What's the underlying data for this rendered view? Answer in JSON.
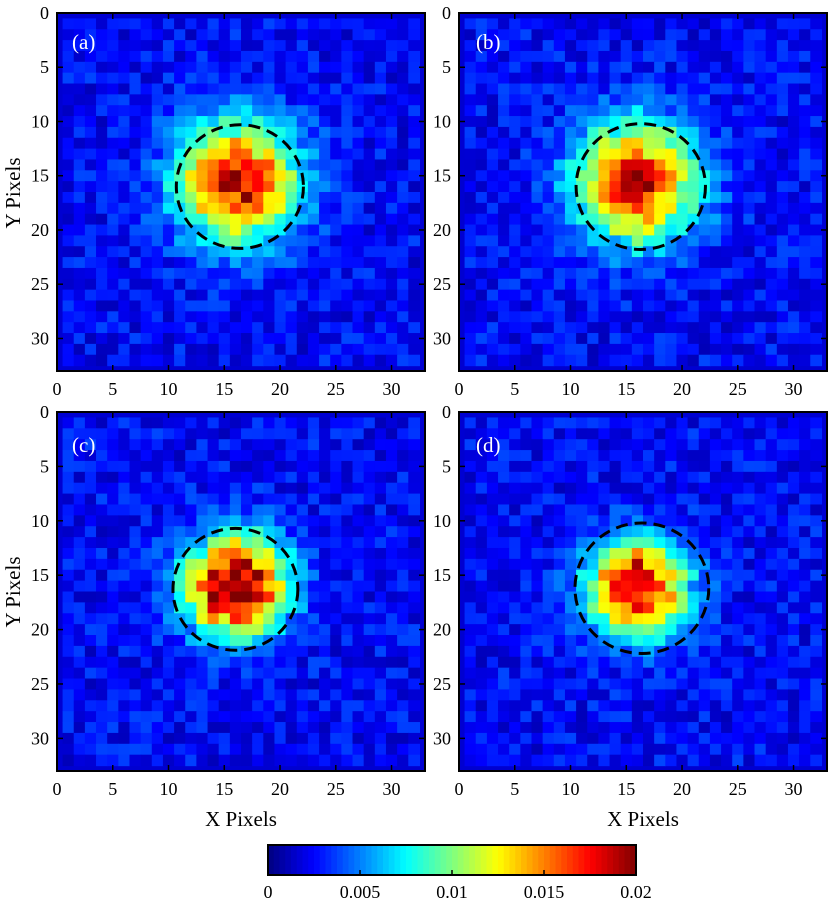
{
  "chart_data": [
    {
      "type": "heatmap",
      "panel_label": "(a)",
      "x_ticks": [
        0,
        5,
        10,
        15,
        20,
        25,
        30
      ],
      "y_ticks": [
        0,
        5,
        10,
        15,
        20,
        25,
        30
      ],
      "xlim": [
        0,
        33
      ],
      "ylim": [
        0,
        33
      ],
      "xlabel": "",
      "ylabel": "Y  Pixels",
      "grid_size": 32,
      "background_level": 0.0025,
      "spot": {
        "center_x": 16.2,
        "center_y": 15.5,
        "peak": 0.0165,
        "sigma": 3.7
      },
      "circle": {
        "center_x": 16.4,
        "center_y": 16.0,
        "radius": 5.7
      }
    },
    {
      "type": "heatmap",
      "panel_label": "(b)",
      "x_ticks": [
        0,
        5,
        10,
        15,
        20,
        25,
        30
      ],
      "y_ticks": [
        0,
        5,
        10,
        15,
        20,
        25,
        30
      ],
      "xlim": [
        0,
        33
      ],
      "ylim": [
        0,
        33
      ],
      "xlabel": "",
      "ylabel": "",
      "grid_size": 32,
      "background_level": 0.0025,
      "spot": {
        "center_x": 16.0,
        "center_y": 15.6,
        "peak": 0.0162,
        "sigma": 3.7
      },
      "circle": {
        "center_x": 16.3,
        "center_y": 16.0,
        "radius": 5.8
      }
    },
    {
      "type": "heatmap",
      "panel_label": "(c)",
      "x_ticks": [
        0,
        5,
        10,
        15,
        20,
        25,
        30
      ],
      "y_ticks": [
        0,
        5,
        10,
        15,
        20,
        25,
        30
      ],
      "xlim": [
        0,
        33
      ],
      "ylim": [
        0,
        33
      ],
      "xlabel": "X  Pixels",
      "ylabel": "Y  Pixels",
      "grid_size": 32,
      "background_level": 0.0025,
      "spot": {
        "center_x": 16.0,
        "center_y": 16.0,
        "peak": 0.0195,
        "sigma": 3.1
      },
      "circle": {
        "center_x": 16.0,
        "center_y": 16.3,
        "radius": 5.6
      }
    },
    {
      "type": "heatmap",
      "panel_label": "(d)",
      "x_ticks": [
        0,
        5,
        10,
        15,
        20,
        25,
        30
      ],
      "y_ticks": [
        0,
        5,
        10,
        15,
        20,
        25,
        30
      ],
      "xlim": [
        0,
        33
      ],
      "ylim": [
        0,
        33
      ],
      "xlabel": "X  Pixels",
      "ylabel": "",
      "grid_size": 32,
      "background_level": 0.0025,
      "spot": {
        "center_x": 16.0,
        "center_y": 16.2,
        "peak": 0.0175,
        "sigma": 3.0
      },
      "circle": {
        "center_x": 16.4,
        "center_y": 16.2,
        "radius": 6.0
      }
    }
  ],
  "colorbar": {
    "min": 0,
    "max": 0.02,
    "ticks": [
      0,
      0.005,
      0.01,
      0.015,
      0.02
    ],
    "tick_labels": [
      "0",
      "0.005",
      "0.01",
      "0.015",
      "0.02"
    ],
    "colormap": "jet"
  }
}
